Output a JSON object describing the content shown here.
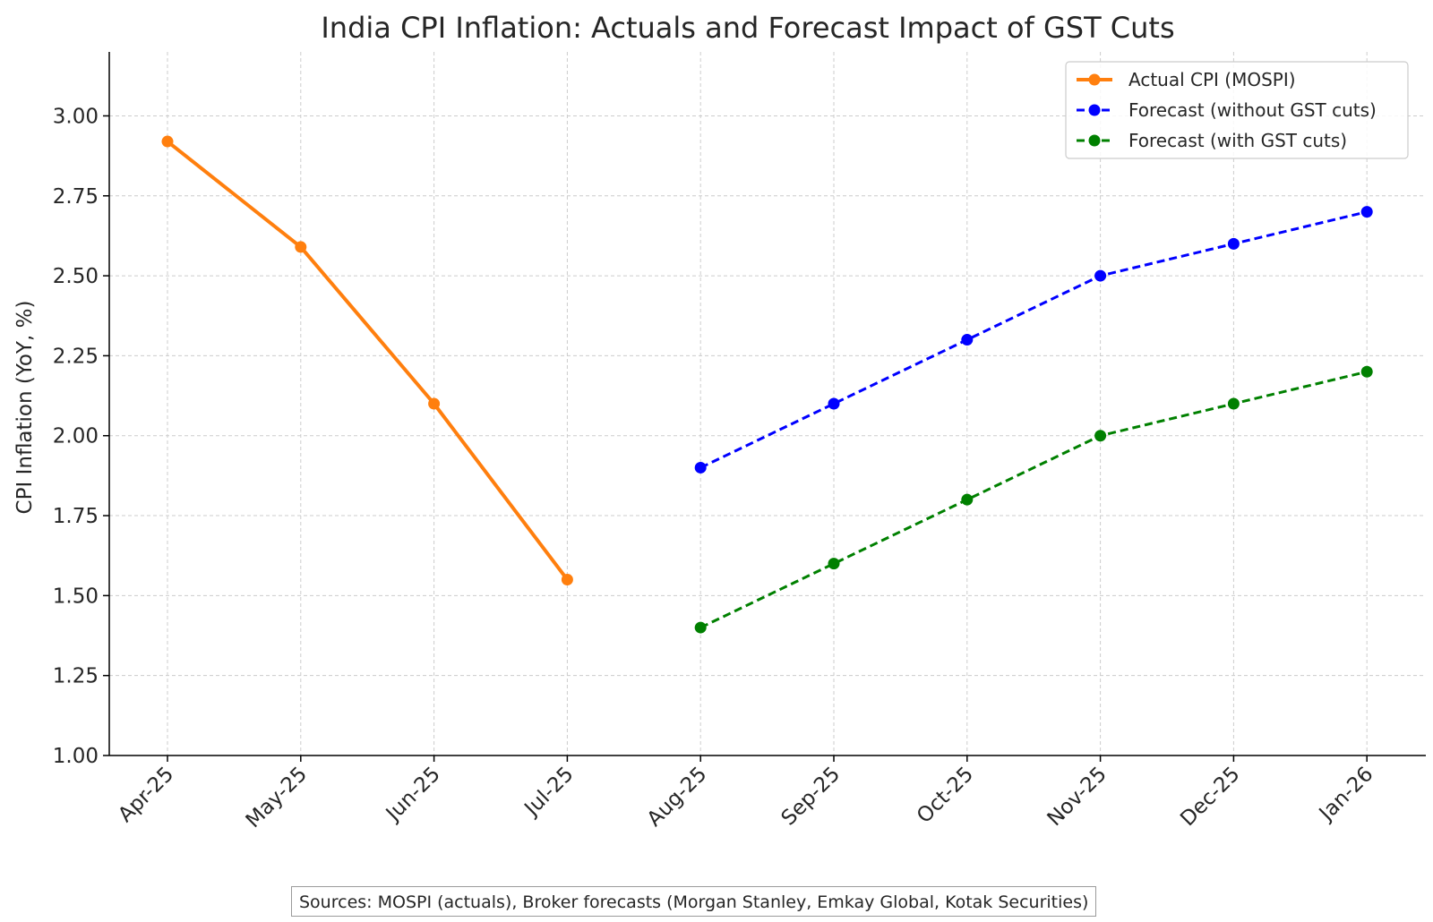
{
  "chart_data": {
    "type": "line",
    "title": "India CPI Inflation: Actuals and Forecast Impact of GST Cuts",
    "xlabel": "",
    "ylabel": "CPI Inflation (YoY, %)",
    "categories": [
      "Apr-25",
      "May-25",
      "Jun-25",
      "Jul-25",
      "Aug-25",
      "Sep-25",
      "Oct-25",
      "Nov-25",
      "Dec-25",
      "Jan-26"
    ],
    "ylim": [
      1.0,
      3.2
    ],
    "yticks": [
      "1.00",
      "1.25",
      "1.50",
      "1.75",
      "2.00",
      "2.25",
      "2.50",
      "2.75",
      "3.00"
    ],
    "grid": true,
    "legend_position": "top-right",
    "series": [
      {
        "name": "Actual CPI (MOSPI)",
        "color": "#ff7f0e",
        "style": "solid",
        "points": [
          {
            "x": "Apr-25",
            "y": 2.92
          },
          {
            "x": "May-25",
            "y": 2.59
          },
          {
            "x": "Jun-25",
            "y": 2.1
          },
          {
            "x": "Jul-25",
            "y": 1.55
          }
        ]
      },
      {
        "name": "Forecast (without GST cuts)",
        "color": "#0000ff",
        "style": "dashed",
        "points": [
          {
            "x": "Aug-25",
            "y": 1.9
          },
          {
            "x": "Sep-25",
            "y": 2.1
          },
          {
            "x": "Oct-25",
            "y": 2.3
          },
          {
            "x": "Nov-25",
            "y": 2.5
          },
          {
            "x": "Dec-25",
            "y": 2.6
          },
          {
            "x": "Jan-26",
            "y": 2.7
          }
        ]
      },
      {
        "name": "Forecast (with GST cuts)",
        "color": "#008000",
        "style": "dashed",
        "points": [
          {
            "x": "Aug-25",
            "y": 1.4
          },
          {
            "x": "Sep-25",
            "y": 1.6
          },
          {
            "x": "Oct-25",
            "y": 1.8
          },
          {
            "x": "Nov-25",
            "y": 2.0
          },
          {
            "x": "Dec-25",
            "y": 2.1
          },
          {
            "x": "Jan-26",
            "y": 2.2
          }
        ]
      }
    ],
    "source_note": "Sources: MOSPI (actuals), Broker forecasts (Morgan Stanley, Emkay Global, Kotak Securities)"
  }
}
